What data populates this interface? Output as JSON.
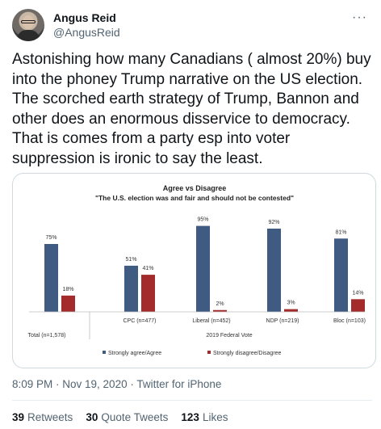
{
  "author": {
    "name": "Angus Reid",
    "handle": "@AngusReid",
    "more_icon": "ellipsis-icon"
  },
  "tweet": {
    "text": "Astonishing how many Canadians ( almost 20%) buy into the phoney Trump narrative on the US election. The scorched earth strategy of Trump, Bannon and other does an enormous disservice to democracy. That is comes from a party esp into voter suppression is ironic to say the least.",
    "timestamp": "8:09 PM · Nov 19, 2020 · Twitter for iPhone"
  },
  "stats": {
    "retweets_count": "39",
    "retweets_label": "Retweets",
    "quotes_count": "30",
    "quotes_label": "Quote Tweets",
    "likes_count": "123",
    "likes_label": "Likes"
  },
  "chart_data": {
    "type": "bar",
    "title": "Agree vs Disagree",
    "subtitle": "\"The U.S. election was and fair and should not be contested\"",
    "categories": [
      "Total (n=1,578)",
      "CPC (n=477)",
      "Liberal (n=452)",
      "NDP (n=219)",
      "Bloc (n=103)"
    ],
    "group_label": "2019 Federal Vote",
    "series": [
      {
        "name": "Strongly agree/Agree",
        "color": "#3f5b82",
        "values": [
          75,
          51,
          95,
          92,
          81
        ]
      },
      {
        "name": "Strongly disagree/Disagree",
        "color": "#a32b2b",
        "values": [
          18,
          41,
          2,
          3,
          14
        ]
      }
    ],
    "value_suffix": "%",
    "ylim": [
      0,
      100
    ],
    "grid": false,
    "legend": "bottom"
  }
}
